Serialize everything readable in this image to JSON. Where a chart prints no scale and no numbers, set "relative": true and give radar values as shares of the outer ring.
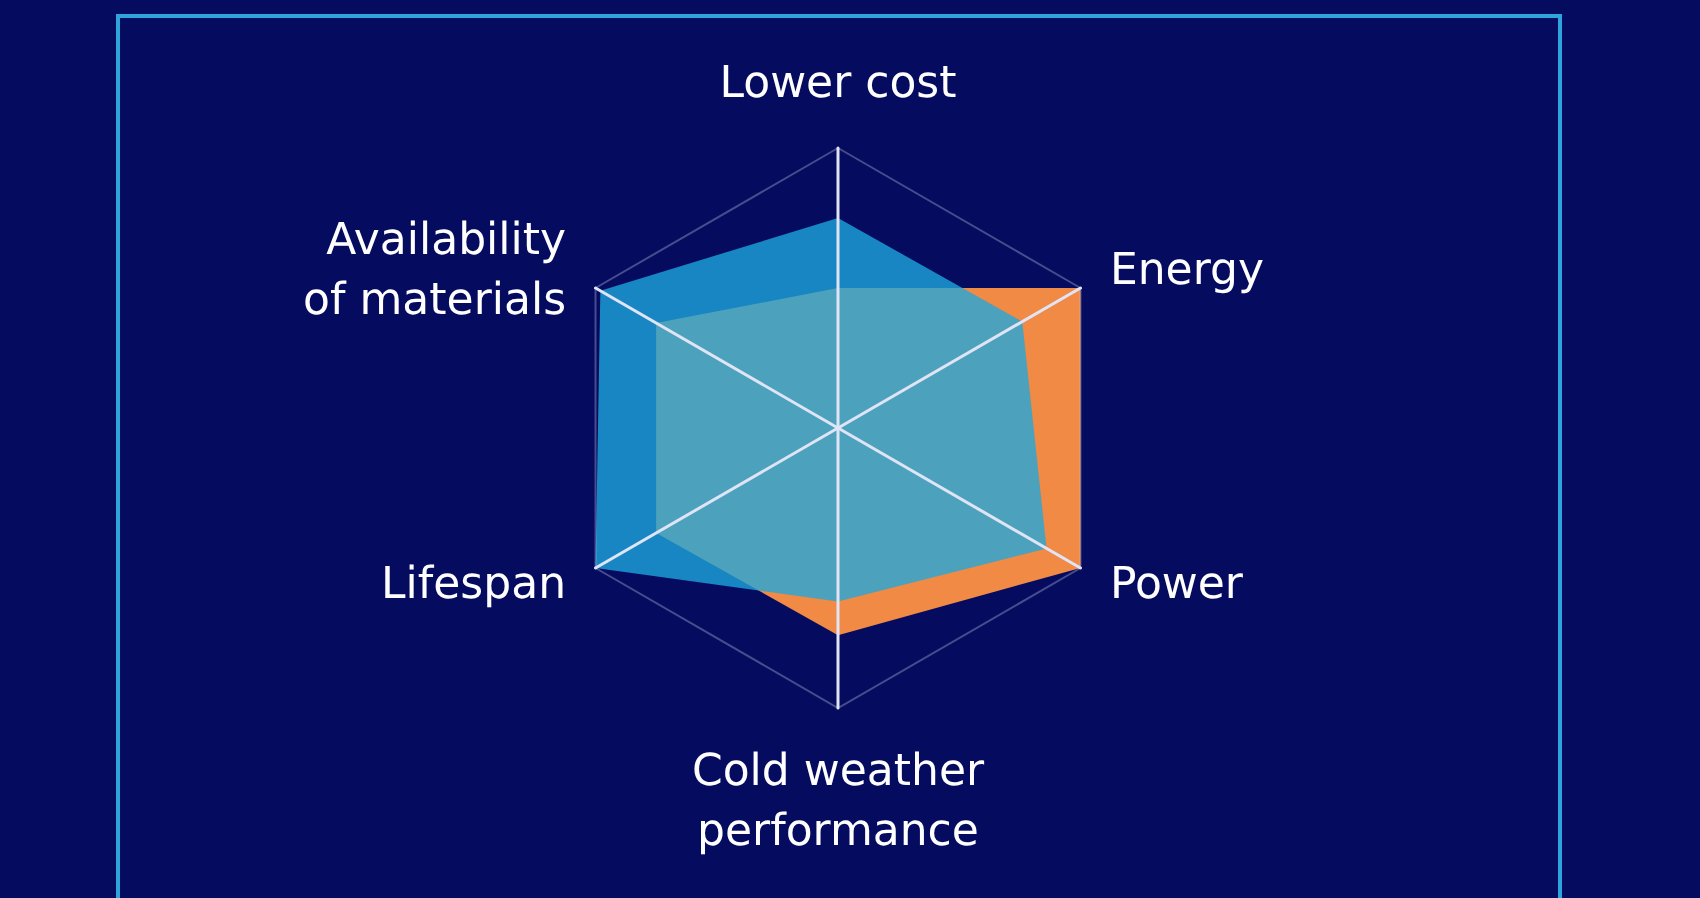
{
  "chart_data": {
    "type": "radar",
    "categories": [
      "Lower cost",
      "Energy",
      "Power",
      "Cold weather performance",
      "Lifespan",
      "Availability of materials"
    ],
    "relative": true,
    "series": [
      {
        "color": "#f08a45",
        "values": [
          0.5,
          1,
          1,
          0.74,
          0.75,
          0.75
        ]
      },
      {
        "color": "#1ea9de",
        "values": [
          0.75,
          0.76,
          0.86,
          0.62,
          1,
          0.98
        ]
      }
    ]
  }
}
